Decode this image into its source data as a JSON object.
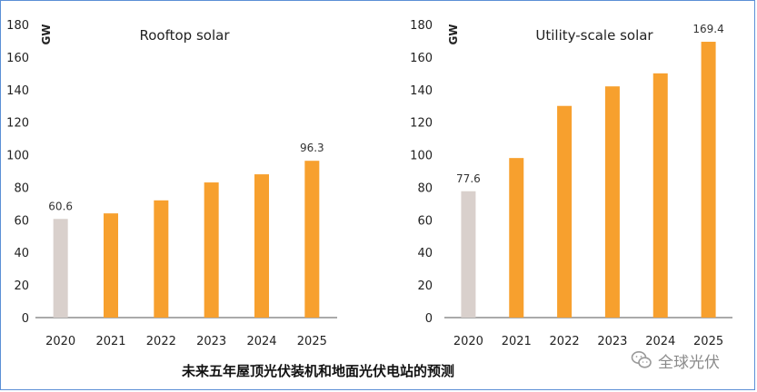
{
  "chart_data": [
    {
      "type": "bar",
      "title": "Rooftop solar",
      "ylabel": "GW",
      "categories": [
        "2020",
        "2021",
        "2022",
        "2023",
        "2024",
        "2025"
      ],
      "values": [
        60.6,
        64,
        72,
        83,
        88,
        96.3
      ],
      "data_labels": [
        "60.6",
        "",
        "",
        "",
        "",
        "96.3"
      ],
      "bar_colors": [
        "#d9d0cc",
        "#f7a02e",
        "#f7a02e",
        "#f7a02e",
        "#f7a02e",
        "#f7a02e"
      ],
      "ylim": [
        0,
        180
      ],
      "yticks": [
        0,
        20,
        40,
        60,
        80,
        100,
        120,
        140,
        160,
        180
      ],
      "grid": false
    },
    {
      "type": "bar",
      "title": "Utility-scale solar",
      "ylabel": "GW",
      "categories": [
        "2020",
        "2021",
        "2022",
        "2023",
        "2024",
        "2025"
      ],
      "values": [
        77.6,
        98,
        130,
        142,
        150,
        169.4
      ],
      "data_labels": [
        "77.6",
        "",
        "",
        "",
        "",
        "169.4"
      ],
      "bar_colors": [
        "#d9d0cc",
        "#f7a02e",
        "#f7a02e",
        "#f7a02e",
        "#f7a02e",
        "#f7a02e"
      ],
      "ylim": [
        0,
        180
      ],
      "yticks": [
        0,
        20,
        40,
        60,
        80,
        100,
        120,
        140,
        160,
        180
      ],
      "grid": false
    }
  ],
  "caption": "未来五年屋顶光伏装机和地面光伏电站的预测",
  "watermark": {
    "icon": "wechat-icon",
    "text": "全球光伏"
  }
}
